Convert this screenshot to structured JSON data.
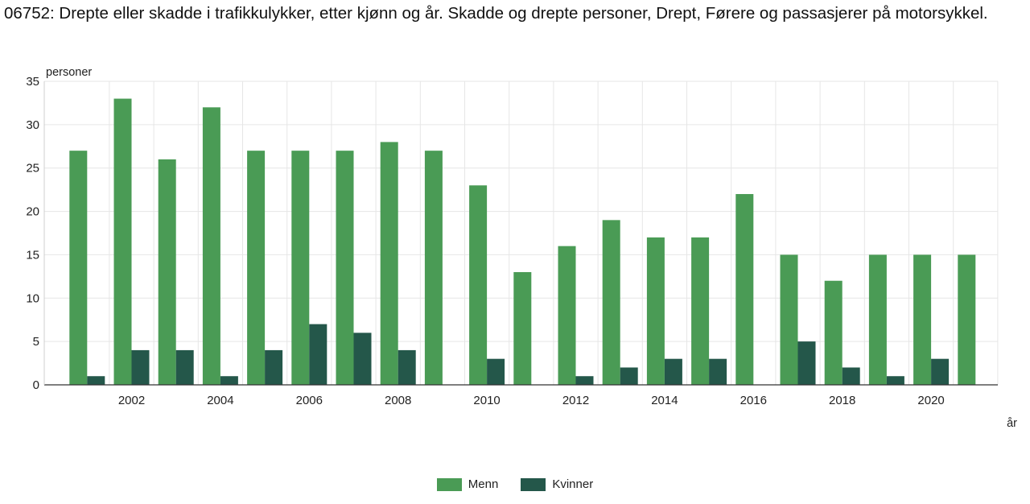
{
  "title": "06752: Drepte eller skadde i trafikkulykker, etter kjønn og år. Skadde og drepte personer, Drept, Førere og passasjerer på motorsykkel.",
  "chart_data": {
    "type": "bar",
    "ylabel": "personer",
    "xlabel": "år",
    "ylim": [
      0,
      35
    ],
    "yticks": [
      0,
      5,
      10,
      15,
      20,
      25,
      30,
      35
    ],
    "categories": [
      "2001",
      "2002",
      "2003",
      "2004",
      "2005",
      "2006",
      "2007",
      "2008",
      "2009",
      "2010",
      "2011",
      "2012",
      "2013",
      "2014",
      "2015",
      "2016",
      "2017",
      "2018",
      "2019",
      "2020",
      "2021"
    ],
    "x_tick_labels": [
      "2002",
      "2004",
      "2006",
      "2008",
      "2010",
      "2012",
      "2014",
      "2016",
      "2018",
      "2020"
    ],
    "grid": true,
    "legend_position": "bottom",
    "series": [
      {
        "name": "Menn",
        "color": "#4a9b55",
        "values": [
          27,
          33,
          26,
          32,
          27,
          27,
          27,
          28,
          27,
          23,
          13,
          16,
          19,
          17,
          17,
          22,
          15,
          12,
          15,
          15,
          15
        ]
      },
      {
        "name": "Kvinner",
        "color": "#24574a",
        "values": [
          1,
          4,
          4,
          1,
          4,
          7,
          6,
          4,
          0,
          3,
          0,
          1,
          2,
          3,
          3,
          0,
          5,
          2,
          1,
          3,
          0
        ]
      }
    ]
  }
}
